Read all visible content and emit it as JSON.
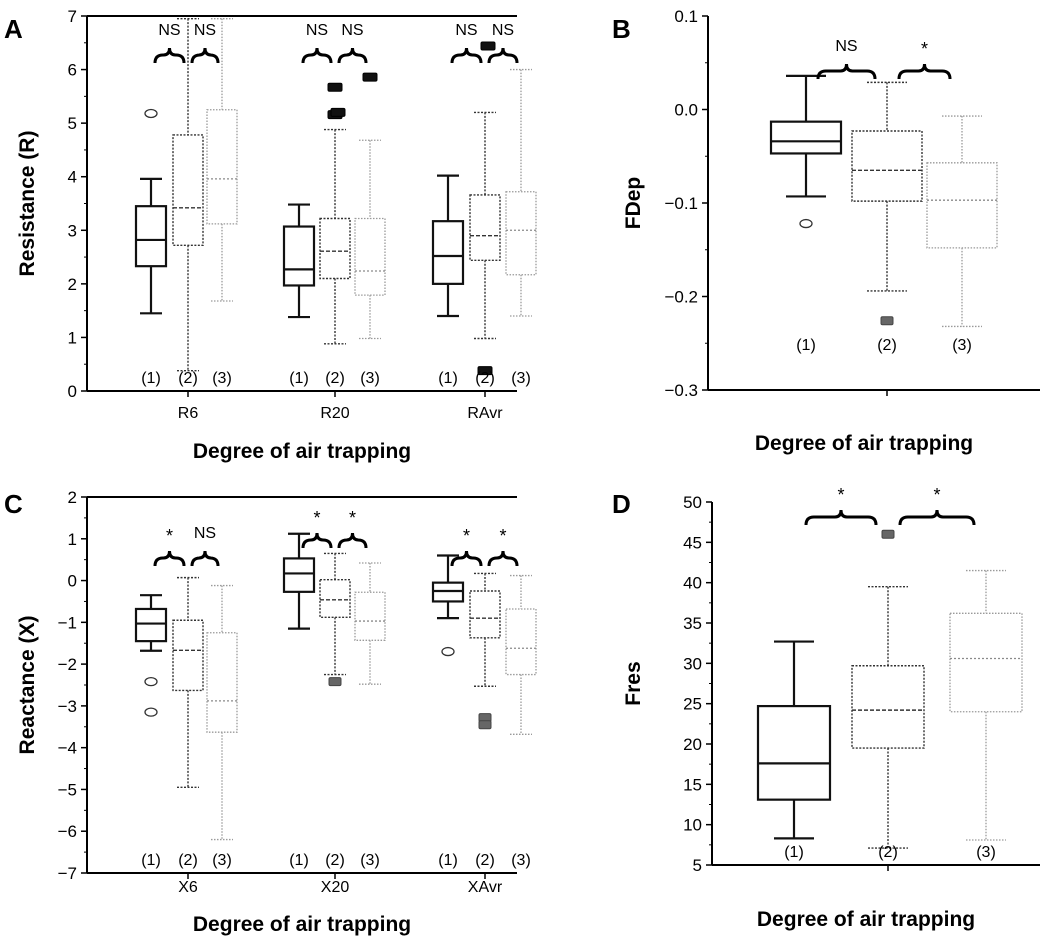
{
  "chart_data": [
    {
      "panel": "A",
      "type": "box",
      "ylabel": "Resistance (R)",
      "xlabel": "Degree of air trapping",
      "ylim": [
        0,
        7
      ],
      "yticks": [
        0,
        1,
        2,
        3,
        4,
        5,
        6,
        7
      ],
      "groups": [
        {
          "label": "R6",
          "boxes": [
            {
              "group": "(1)",
              "min": 1.45,
              "q1": 2.33,
              "median": 2.82,
              "q3": 3.45,
              "max": 3.96,
              "outliers": [
                5.18
              ],
              "marker": "circle"
            },
            {
              "group": "(2)",
              "min": 0.38,
              "q1": 2.72,
              "median": 3.42,
              "q3": 4.78,
              "max": 6.95,
              "outliers": [],
              "marker": "rect"
            },
            {
              "group": "(3)",
              "min": 1.68,
              "q1": 3.12,
              "median": 3.96,
              "q3": 5.25,
              "max": 6.95,
              "outliers": [],
              "marker": "rect"
            }
          ],
          "brackets": [
            {
              "from": 0,
              "to": 1,
              "text": "NS"
            },
            {
              "from": 1,
              "to": 2,
              "text": "NS"
            }
          ]
        },
        {
          "label": "R20",
          "boxes": [
            {
              "group": "(1)",
              "min": 1.38,
              "q1": 1.97,
              "median": 2.27,
              "q3": 3.07,
              "max": 3.48,
              "outliers": [],
              "marker": "circle"
            },
            {
              "group": "(2)",
              "min": 0.88,
              "q1": 2.1,
              "median": 2.61,
              "q3": 3.22,
              "max": 4.88,
              "outliers": [
                5.16,
                5.2,
                5.67
              ],
              "marker": "rect"
            },
            {
              "group": "(3)",
              "min": 0.98,
              "q1": 1.79,
              "median": 2.24,
              "q3": 3.22,
              "max": 4.68,
              "outliers": [
                5.86
              ],
              "marker": "rect"
            }
          ],
          "brackets": [
            {
              "from": 0,
              "to": 1,
              "text": "NS"
            },
            {
              "from": 1,
              "to": 2,
              "text": "NS"
            }
          ]
        },
        {
          "label": "RAvr",
          "boxes": [
            {
              "group": "(1)",
              "min": 1.4,
              "q1": 2.0,
              "median": 2.52,
              "q3": 3.17,
              "max": 4.02,
              "outliers": [],
              "marker": "circle"
            },
            {
              "group": "(2)",
              "min": 0.98,
              "q1": 2.44,
              "median": 2.9,
              "q3": 3.66,
              "max": 5.2,
              "outliers": [
                0.38,
                6.44
              ],
              "marker": "rect"
            },
            {
              "group": "(3)",
              "min": 1.4,
              "q1": 2.17,
              "median": 3.0,
              "q3": 3.72,
              "max": 6.0,
              "outliers": [],
              "marker": "rect"
            }
          ],
          "brackets": [
            {
              "from": 0,
              "to": 1,
              "text": "NS"
            },
            {
              "from": 1,
              "to": 2,
              "text": "NS"
            }
          ]
        }
      ]
    },
    {
      "panel": "B",
      "type": "box",
      "ylabel": "FDep",
      "xlabel": "Degree of air trapping",
      "ylim": [
        -0.3,
        0.1
      ],
      "yticks": [
        -0.3,
        -0.2,
        -0.1,
        0.0,
        0.1
      ],
      "ytick_labels": [
        "−0.3",
        "−0.2",
        "−0.1",
        "0.0",
        "0.1"
      ],
      "groups": [
        {
          "label": "",
          "boxes": [
            {
              "group": "(1)",
              "min": -0.093,
              "q1": -0.047,
              "median": -0.034,
              "q3": -0.013,
              "max": 0.036,
              "outliers": [
                -0.122
              ],
              "marker": "circle"
            },
            {
              "group": "(2)",
              "min": -0.194,
              "q1": -0.098,
              "median": -0.065,
              "q3": -0.023,
              "max": 0.029,
              "outliers": [
                -0.226
              ],
              "marker": "grayrect"
            },
            {
              "group": "(3)",
              "min": -0.232,
              "q1": -0.148,
              "median": -0.097,
              "q3": -0.057,
              "max": -0.007,
              "outliers": [],
              "marker": "rect"
            }
          ],
          "brackets": [
            {
              "from": 0,
              "to": 1,
              "text": "NS"
            },
            {
              "from": 1,
              "to": 2,
              "text": "*"
            }
          ]
        }
      ]
    },
    {
      "panel": "C",
      "type": "box",
      "ylabel": "Reactance (X)",
      "xlabel": "Degree of air trapping",
      "ylim": [
        -7,
        2
      ],
      "yticks": [
        -7,
        -6,
        -5,
        -4,
        -3,
        -2,
        -1,
        0,
        1,
        2
      ],
      "ytick_labels": [
        "−7",
        "−6",
        "−5",
        "−4",
        "−3",
        "−2",
        "−1",
        "0",
        "1",
        "2"
      ],
      "groups": [
        {
          "label": "X6",
          "boxes": [
            {
              "group": "(1)",
              "min": -1.68,
              "q1": -1.45,
              "median": -1.03,
              "q3": -0.68,
              "max": -0.35,
              "outliers": [
                -2.42,
                -3.15
              ],
              "marker": "circle"
            },
            {
              "group": "(2)",
              "min": -4.95,
              "q1": -2.63,
              "median": -1.67,
              "q3": -0.95,
              "max": 0.07,
              "outliers": [],
              "marker": "rect"
            },
            {
              "group": "(3)",
              "min": -6.2,
              "q1": -3.63,
              "median": -2.88,
              "q3": -1.25,
              "max": -0.12,
              "outliers": [],
              "marker": "rect"
            }
          ],
          "brackets": [
            {
              "from": 0,
              "to": 1,
              "text": "*"
            },
            {
              "from": 1,
              "to": 2,
              "text": "NS"
            }
          ]
        },
        {
          "label": "X20",
          "boxes": [
            {
              "group": "(1)",
              "min": -1.15,
              "q1": -0.27,
              "median": 0.17,
              "q3": 0.53,
              "max": 1.12,
              "outliers": [],
              "marker": "circle"
            },
            {
              "group": "(2)",
              "min": -2.25,
              "q1": -0.88,
              "median": -0.46,
              "q3": 0.02,
              "max": 0.65,
              "outliers": [
                -2.42
              ],
              "marker": "grayrect"
            },
            {
              "group": "(3)",
              "min": -2.48,
              "q1": -1.43,
              "median": -0.97,
              "q3": -0.28,
              "max": 0.42,
              "outliers": [],
              "marker": "rect"
            }
          ],
          "brackets": [
            {
              "from": 0,
              "to": 1,
              "text": "*"
            },
            {
              "from": 1,
              "to": 2,
              "text": "*"
            }
          ]
        },
        {
          "label": "XAvr",
          "boxes": [
            {
              "group": "(1)",
              "min": -0.9,
              "q1": -0.5,
              "median": -0.25,
              "q3": -0.05,
              "max": 0.6,
              "outliers": [
                -1.7
              ],
              "marker": "circle"
            },
            {
              "group": "(2)",
              "min": -2.53,
              "q1": -1.37,
              "median": -0.9,
              "q3": -0.25,
              "max": 0.17,
              "outliers": [
                -3.28,
                -3.45
              ],
              "marker": "grayrect"
            },
            {
              "group": "(3)",
              "min": -3.68,
              "q1": -2.25,
              "median": -1.62,
              "q3": -0.68,
              "max": 0.12,
              "outliers": [],
              "marker": "rect"
            }
          ],
          "brackets": [
            {
              "from": 0,
              "to": 1,
              "text": "*"
            },
            {
              "from": 1,
              "to": 2,
              "text": "*"
            }
          ]
        }
      ]
    },
    {
      "panel": "D",
      "type": "box",
      "ylabel": "Fres",
      "xlabel": "Degree of air trapping",
      "ylim": [
        5,
        50
      ],
      "yticks": [
        5,
        10,
        15,
        20,
        25,
        30,
        35,
        40,
        45,
        50
      ],
      "groups": [
        {
          "label": "",
          "boxes": [
            {
              "group": "(1)",
              "min": 8.3,
              "q1": 13.1,
              "median": 17.6,
              "q3": 24.7,
              "max": 32.7,
              "outliers": [],
              "marker": "circle"
            },
            {
              "group": "(2)",
              "min": 7.1,
              "q1": 19.5,
              "median": 24.2,
              "q3": 29.7,
              "max": 39.5,
              "outliers": [
                46.0
              ],
              "marker": "grayrect"
            },
            {
              "group": "(3)",
              "min": 8.1,
              "q1": 24.0,
              "median": 30.6,
              "q3": 36.2,
              "max": 41.5,
              "outliers": [],
              "marker": "rect"
            }
          ],
          "brackets": [
            {
              "from": 0,
              "to": 1,
              "text": "*"
            },
            {
              "from": 1,
              "to": 2,
              "text": "*"
            }
          ]
        }
      ]
    }
  ]
}
